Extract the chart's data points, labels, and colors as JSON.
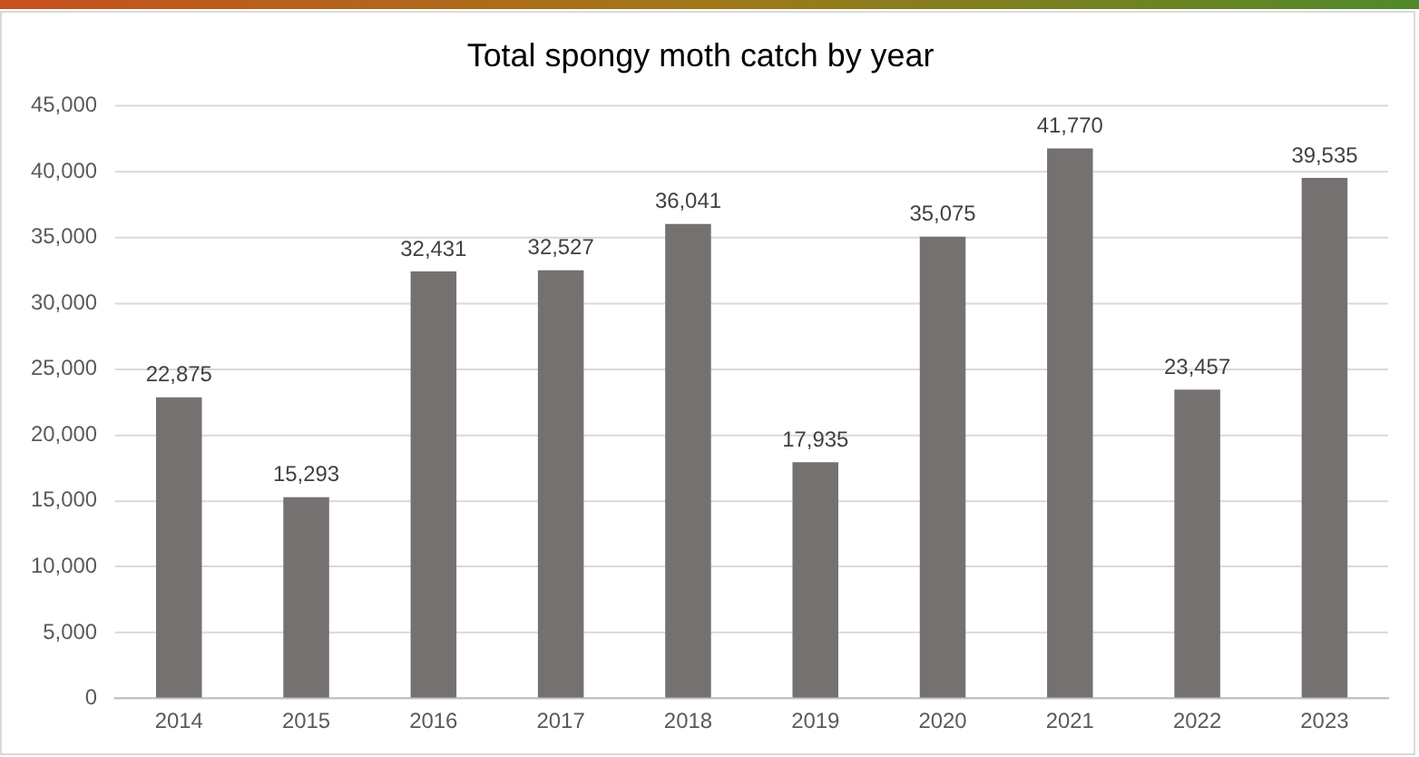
{
  "chart_data": {
    "type": "bar",
    "title": "Total spongy moth catch by year",
    "categories": [
      "2014",
      "2015",
      "2016",
      "2017",
      "2018",
      "2019",
      "2020",
      "2021",
      "2022",
      "2023"
    ],
    "values": [
      22875,
      15293,
      32431,
      32527,
      36041,
      17935,
      35075,
      41770,
      23457,
      39535
    ],
    "color": "#767171",
    "ylim": [
      0,
      45000
    ],
    "yticks": [
      {
        "value": 0,
        "label": "0"
      },
      {
        "value": 5000,
        "label": "5,000"
      },
      {
        "value": 10000,
        "label": "10,000"
      },
      {
        "value": 15000,
        "label": "15,000"
      },
      {
        "value": 20000,
        "label": "20,000"
      },
      {
        "value": 25000,
        "label": "25,000"
      },
      {
        "value": 30000,
        "label": "30,000"
      },
      {
        "value": 35000,
        "label": "35,000"
      },
      {
        "value": 40000,
        "label": "40,000"
      },
      {
        "value": 45000,
        "label": "45,000"
      }
    ],
    "value_labels": [
      "22,875",
      "15,293",
      "32,431",
      "32,527",
      "36,041",
      "17,935",
      "35,075",
      "41,770",
      "23,457",
      "39,535"
    ],
    "grid": "y",
    "legend": false
  }
}
